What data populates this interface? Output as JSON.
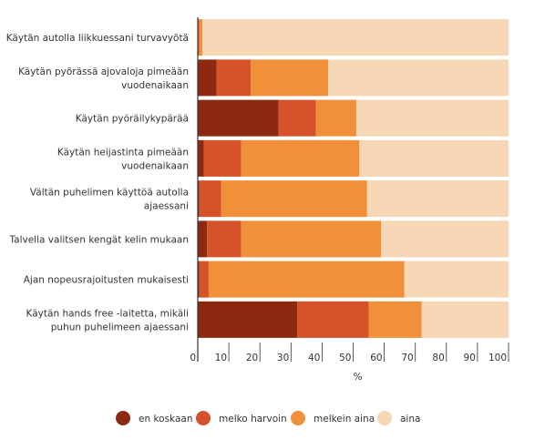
{
  "chart_data": {
    "type": "bar",
    "orientation": "horizontal",
    "stacked": true,
    "categories": [
      "Käytän autolla liikkuessani turvavyötä",
      "Käytän pyörässä ajovaloja pimeään vuodenaikaan",
      "Käytän pyöräilykypärää",
      "Käytän heijastinta pimeään vuodenaikaan",
      "Vältän puhelimen käyttöä autolla ajaessani",
      "Talvella valitsen kengät kelin mukaan",
      "Ajan nopeusrajoitusten mukaisesti",
      "Käytän hands free -laitetta, mikäli puhun puhelimeen ajaessani"
    ],
    "category_lines": [
      [
        "Käytän autolla liikkuessani turvavyötä"
      ],
      [
        "Käytän pyörässä ajovaloja pimeään",
        "vuodenaikaan"
      ],
      [
        "Käytän pyöräilykypärää"
      ],
      [
        "Käytän heijastinta pimeään",
        "vuodenaikaan"
      ],
      [
        "Vältän puhelimen käyttöä autolla",
        "ajaessani"
      ],
      [
        "Talvella valitsen kengät kelin mukaan"
      ],
      [
        "Ajan nopeusrajoitusten mukaisesti"
      ],
      [
        "Käytän hands free -laitetta, mikäli",
        "puhun puhelimeen ajaessani"
      ]
    ],
    "series": [
      {
        "name": "en koskaan",
        "color": "#8B2A10",
        "values": [
          0,
          6,
          26,
          2,
          0.5,
          3,
          0.5,
          32
        ]
      },
      {
        "name": "melko harvoin",
        "color": "#D5522A",
        "values": [
          0.5,
          11,
          12,
          12,
          7,
          11,
          3,
          23
        ]
      },
      {
        "name": "melkein aina",
        "color": "#F0903A",
        "values": [
          1,
          25,
          13,
          38,
          47,
          45,
          63,
          17
        ]
      },
      {
        "name": "aina",
        "color": "#F5D6B5",
        "values": [
          98.5,
          58,
          49,
          48,
          45.5,
          41,
          33.5,
          28
        ]
      }
    ],
    "xlabel": "%",
    "ylabel": "",
    "title": "",
    "xlim": [
      0,
      100
    ],
    "xticks": [
      0,
      10,
      20,
      30,
      40,
      50,
      60,
      70,
      80,
      90,
      100
    ],
    "grid": false,
    "legend_position": "bottom"
  }
}
